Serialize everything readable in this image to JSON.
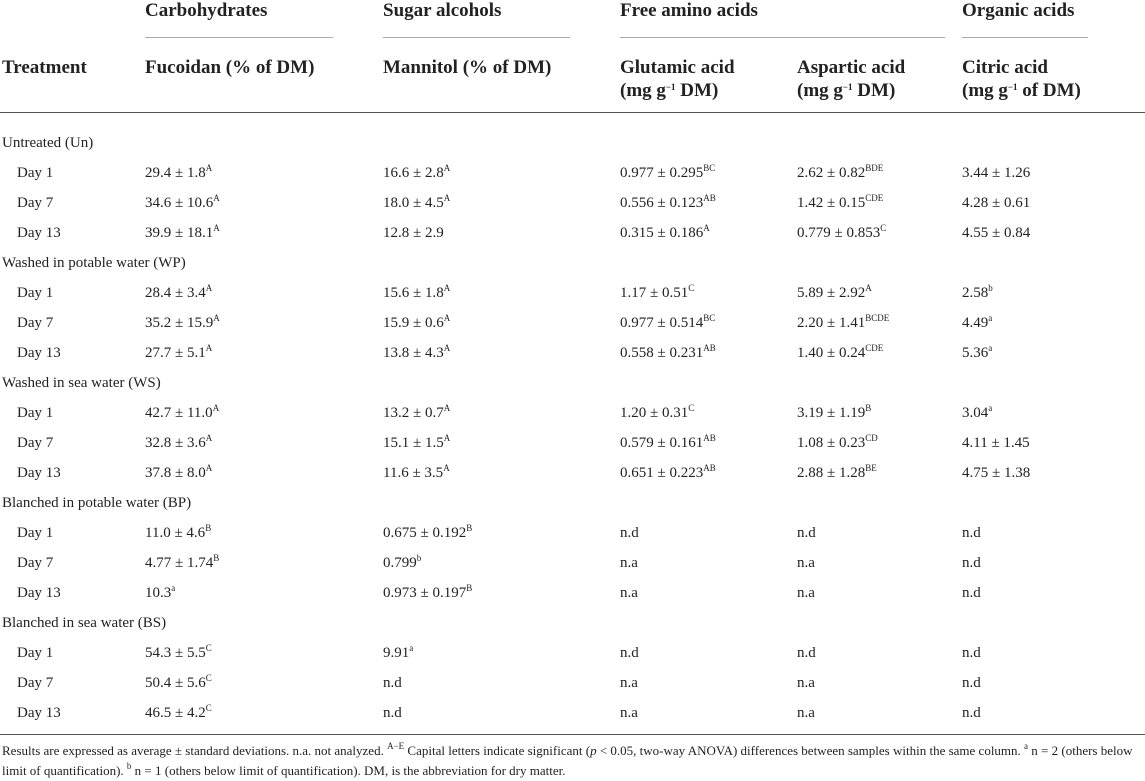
{
  "table": {
    "group_headers": [
      "Carbohydrates",
      "Sugar alcohols",
      "Free amino acids",
      "Organic acids"
    ],
    "treatment_header": "Treatment",
    "column_headers": [
      [
        [
          {
            "text": "Fucoidan (% of DM)"
          }
        ]
      ],
      [
        [
          {
            "text": "Mannitol (% of DM)"
          }
        ]
      ],
      [
        [
          {
            "text": "Glutamic acid"
          }
        ],
        [
          {
            "text": "(mg g"
          },
          {
            "sup": "−1"
          },
          {
            "text": " DM)"
          }
        ]
      ],
      [
        [
          {
            "text": "Aspartic acid"
          }
        ],
        [
          {
            "text": "(mg g"
          },
          {
            "sup": "−1"
          },
          {
            "text": " DM)"
          }
        ]
      ],
      [
        [
          {
            "text": "Citric acid"
          }
        ],
        [
          {
            "text": "(mg g"
          },
          {
            "sup": "−1"
          },
          {
            "text": " of DM)"
          }
        ]
      ]
    ],
    "sections": [
      {
        "label": "Untreated (Un)",
        "rows": [
          {
            "label": "Day 1",
            "cells": [
              [
                "29.4 ± 1.8",
                "A"
              ],
              [
                "16.6 ± 2.8",
                "A"
              ],
              [
                "0.977 ± 0.295",
                "BC"
              ],
              [
                "2.62 ± 0.82",
                "BDE"
              ],
              [
                "3.44 ± 1.26"
              ]
            ]
          },
          {
            "label": "Day 7",
            "cells": [
              [
                "34.6 ± 10.6",
                "A"
              ],
              [
                "18.0 ± 4.5",
                "A"
              ],
              [
                "0.556 ± 0.123",
                "AB"
              ],
              [
                "1.42 ± 0.15",
                "CDE"
              ],
              [
                "4.28 ± 0.61"
              ]
            ]
          },
          {
            "label": "Day 13",
            "cells": [
              [
                "39.9 ± 18.1",
                "A"
              ],
              [
                "12.8 ± 2.9"
              ],
              [
                "0.315 ± 0.186",
                "A"
              ],
              [
                "0.779 ± 0.853",
                "C"
              ],
              [
                "4.55 ± 0.84"
              ]
            ]
          }
        ]
      },
      {
        "label": "Washed in potable water (WP)",
        "rows": [
          {
            "label": "Day 1",
            "cells": [
              [
                "28.4 ± 3.4",
                "A"
              ],
              [
                "15.6 ± 1.8",
                "A"
              ],
              [
                "1.17 ± 0.51",
                "C"
              ],
              [
                "5.89 ± 2.92",
                "A"
              ],
              [
                "2.58",
                "b"
              ]
            ]
          },
          {
            "label": "Day 7",
            "cells": [
              [
                "35.2 ± 15.9",
                "A"
              ],
              [
                "15.9 ± 0.6",
                "A"
              ],
              [
                "0.977 ± 0.514",
                "BC"
              ],
              [
                "2.20 ± 1.41",
                "BCDE"
              ],
              [
                "4.49",
                "a"
              ]
            ]
          },
          {
            "label": "Day 13",
            "cells": [
              [
                "27.7 ± 5.1",
                "A"
              ],
              [
                "13.8 ± 4.3",
                "A"
              ],
              [
                "0.558 ± 0.231",
                "AB"
              ],
              [
                "1.40 ± 0.24",
                "CDE"
              ],
              [
                "5.36",
                "a"
              ]
            ]
          }
        ]
      },
      {
        "label": "Washed in sea water (WS)",
        "rows": [
          {
            "label": "Day 1",
            "cells": [
              [
                "42.7 ± 11.0",
                "A"
              ],
              [
                "13.2 ± 0.7",
                "A"
              ],
              [
                "1.20 ± 0.31",
                "C"
              ],
              [
                "3.19 ± 1.19",
                "B"
              ],
              [
                "3.04",
                "a"
              ]
            ]
          },
          {
            "label": "Day 7",
            "cells": [
              [
                "32.8 ± 3.6",
                "A"
              ],
              [
                "15.1 ± 1.5",
                "A"
              ],
              [
                "0.579 ± 0.161",
                "AB"
              ],
              [
                "1.08 ± 0.23",
                "CD"
              ],
              [
                "4.11 ± 1.45"
              ]
            ]
          },
          {
            "label": "Day 13",
            "cells": [
              [
                "37.8 ± 8.0",
                "A"
              ],
              [
                "11.6 ± 3.5",
                "A"
              ],
              [
                "0.651 ± 0.223",
                "AB"
              ],
              [
                "2.88 ± 1.28",
                "BE"
              ],
              [
                "4.75 ± 1.38"
              ]
            ]
          }
        ]
      },
      {
        "label": "Blanched in potable water (BP)",
        "rows": [
          {
            "label": "Day 1",
            "cells": [
              [
                "11.0 ± 4.6",
                "B"
              ],
              [
                "0.675 ± 0.192",
                "B"
              ],
              [
                "n.d"
              ],
              [
                "n.d"
              ],
              [
                "n.d"
              ]
            ]
          },
          {
            "label": "Day 7",
            "cells": [
              [
                "4.77 ± 1.74",
                "B"
              ],
              [
                "0.799",
                "b"
              ],
              [
                "n.a"
              ],
              [
                "n.a"
              ],
              [
                "n.d"
              ]
            ]
          },
          {
            "label": "Day 13",
            "cells": [
              [
                "10.3",
                "a"
              ],
              [
                "0.973 ± 0.197",
                "B"
              ],
              [
                "n.a"
              ],
              [
                "n.a"
              ],
              [
                "n.d"
              ]
            ]
          }
        ]
      },
      {
        "label": "Blanched in sea water (BS)",
        "rows": [
          {
            "label": "Day 1",
            "cells": [
              [
                "54.3 ± 5.5",
                "C"
              ],
              [
                "9.91",
                "a"
              ],
              [
                "n.d"
              ],
              [
                "n.d"
              ],
              [
                "n.d"
              ]
            ]
          },
          {
            "label": "Day 7",
            "cells": [
              [
                "50.4 ± 5.6",
                "C"
              ],
              [
                "n.d"
              ],
              [
                "n.a"
              ],
              [
                "n.a"
              ],
              [
                "n.d"
              ]
            ]
          },
          {
            "label": "Day 13",
            "cells": [
              [
                "46.5 ± 4.2",
                "C"
              ],
              [
                "n.d"
              ],
              [
                "n.a"
              ],
              [
                "n.a"
              ],
              [
                "n.d"
              ]
            ]
          }
        ]
      }
    ],
    "footnote": [
      {
        "text": "Results are expressed as average ± standard deviations. n.a. not analyzed. "
      },
      {
        "sup": "A−E"
      },
      {
        "text": " Capital letters indicate significant ("
      },
      {
        "italic": "p"
      },
      {
        "text": " < 0.05, two-way ANOVA) differences between samples within the same column. "
      },
      {
        "sup": "a"
      },
      {
        "text": " n = 2 (others below limit of quantification). "
      },
      {
        "sup": "b"
      },
      {
        "text": " n = 1 (others below limit of quantification). DM, is the abbreviation for dry matter."
      }
    ]
  }
}
